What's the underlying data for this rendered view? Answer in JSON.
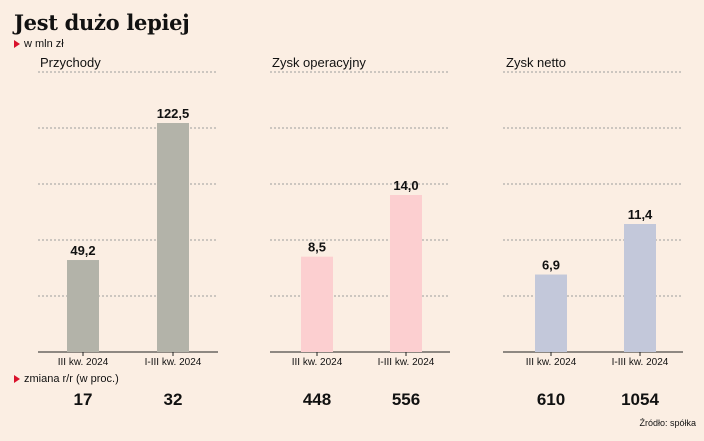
{
  "title": "Jest dużo lepiej",
  "subtitle": "w mln zł",
  "change_label": "zmiana r/r (w proc.)",
  "source": "Źródło: spółka",
  "colors": {
    "background": "#fbeee3",
    "przychody": "#b3b3a9",
    "zysk_operacyjny": "#fccfd0",
    "zysk_netto": "#c3c8da",
    "marker": "#d9112b"
  },
  "chart_data": [
    {
      "type": "bar",
      "title": "Przychody",
      "categories": [
        "III kw. 2024",
        "I-III kw. 2024"
      ],
      "values": [
        49.2,
        122.5
      ],
      "value_labels": [
        "49,2",
        "122,5"
      ],
      "change_yoy": [
        "17",
        "32"
      ]
    },
    {
      "type": "bar",
      "title": "Zysk operacyjny",
      "categories": [
        "III kw. 2024",
        "I-III kw. 2024"
      ],
      "values": [
        8.5,
        14.0
      ],
      "value_labels": [
        "8,5",
        "14,0"
      ],
      "change_yoy": [
        "448",
        "556"
      ]
    },
    {
      "type": "bar",
      "title": "Zysk netto",
      "categories": [
        "III kw. 2024",
        "I-III kw. 2024"
      ],
      "values": [
        6.9,
        11.4
      ],
      "value_labels": [
        "6,9",
        "11,4"
      ],
      "change_yoy": [
        "610",
        "1054"
      ]
    }
  ]
}
